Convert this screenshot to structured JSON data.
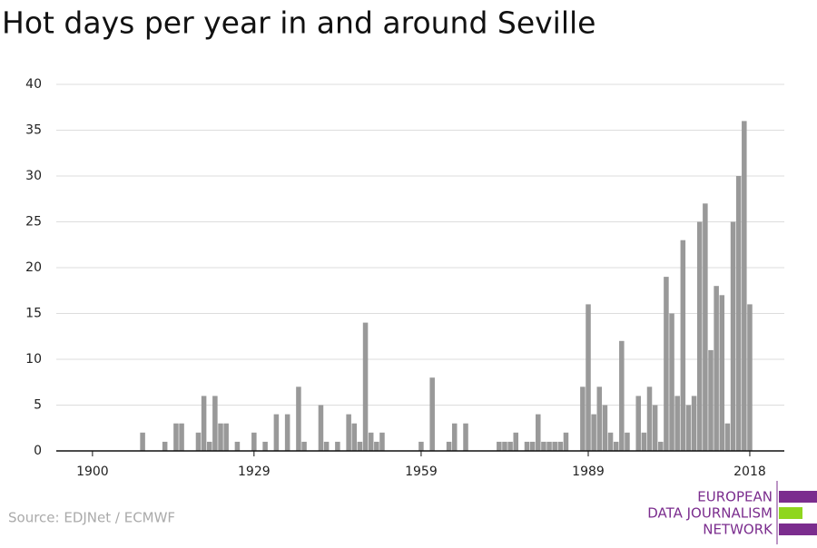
{
  "chart_data": {
    "type": "bar",
    "title": "Hot days per year in and around Seville",
    "x": [
      1909,
      1913,
      1915,
      1916,
      1919,
      1920,
      1921,
      1922,
      1923,
      1924,
      1926,
      1929,
      1931,
      1933,
      1935,
      1937,
      1938,
      1941,
      1942,
      1944,
      1946,
      1947,
      1948,
      1949,
      1950,
      1951,
      1952,
      1959,
      1961,
      1964,
      1965,
      1967,
      1973,
      1974,
      1975,
      1976,
      1978,
      1979,
      1980,
      1981,
      1982,
      1983,
      1984,
      1985,
      1988,
      1989,
      1990,
      1991,
      1992,
      1993,
      1994,
      1995,
      1996,
      1998,
      1999,
      2000,
      2001,
      2002,
      2003,
      2004,
      2005,
      2006,
      2007,
      2008,
      2009,
      2010,
      2011,
      2012,
      2013,
      2014,
      2015,
      2016,
      2017,
      2018
    ],
    "values": [
      2,
      1,
      3,
      3,
      2,
      6,
      1,
      6,
      3,
      3,
      1,
      2,
      1,
      4,
      4,
      7,
      1,
      5,
      1,
      1,
      4,
      3,
      1,
      14,
      2,
      1,
      2,
      1,
      8,
      1,
      3,
      3,
      1,
      1,
      1,
      2,
      1,
      1,
      4,
      1,
      1,
      1,
      1,
      2,
      7,
      16,
      4,
      7,
      5,
      2,
      1,
      12,
      2,
      6,
      2,
      7,
      5,
      1,
      19,
      15,
      6,
      23,
      5,
      6,
      25,
      27,
      11,
      18,
      17,
      3,
      25,
      30,
      36,
      16
    ],
    "color": "#999999",
    "xlim": [
      1893.5,
      2024.2
    ],
    "xticks": [
      1900,
      1929,
      1959,
      1989,
      2018
    ],
    "ylim": [
      0,
      40
    ],
    "yticks": [
      0,
      5,
      10,
      15,
      20,
      25,
      30,
      35,
      40
    ],
    "grid": true,
    "source": "Source: EDJNet / ECMWF"
  },
  "logo": {
    "lines": [
      "EUROPEAN",
      "DATA JOURNALISM",
      "NETWORK"
    ]
  }
}
